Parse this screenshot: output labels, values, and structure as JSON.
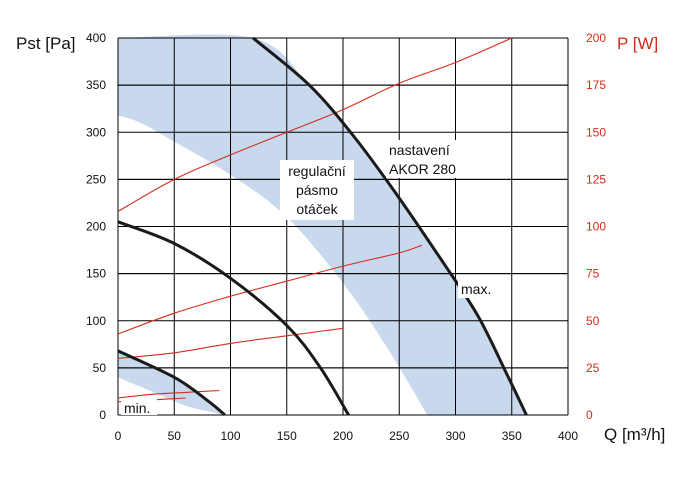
{
  "chart_data": {
    "type": "line",
    "left_axis": {
      "label": "Pst [Pa]",
      "range": [
        0,
        400
      ],
      "ticks": [
        "0",
        "50",
        "100",
        "150",
        "200",
        "250",
        "300",
        "350",
        "400"
      ]
    },
    "right_axis": {
      "label": "P [W]",
      "range": [
        0,
        200
      ],
      "ticks": [
        "0",
        "25",
        "50",
        "75",
        "100",
        "125",
        "150",
        "175",
        "200"
      ],
      "color": "#d42d1b"
    },
    "x_axis": {
      "label": "Q [m³/h]",
      "range": [
        0,
        400
      ],
      "ticks": [
        "0",
        "50",
        "100",
        "150",
        "200",
        "250",
        "300",
        "350",
        "400"
      ]
    },
    "grid": true,
    "colors": {
      "pressure": "#1a1a1a",
      "power": "#d42d1b",
      "band": "#c8d9ee"
    },
    "annotations": {
      "band": [
        "regulační",
        "pásmo",
        "otáček"
      ],
      "setting": [
        "nastavení",
        "AKOR 280"
      ],
      "max": "max.",
      "min": "min."
    },
    "pressure_series": [
      {
        "points": [
          [
            0,
            205
          ],
          [
            50,
            182
          ],
          [
            100,
            145
          ],
          [
            150,
            95
          ],
          [
            180,
            50
          ],
          [
            205,
            0
          ]
        ]
      },
      {
        "points": [
          [
            0,
            68
          ],
          [
            50,
            40
          ],
          [
            80,
            15
          ],
          [
            95,
            0
          ]
        ]
      },
      {
        "points": [
          [
            120,
            400
          ],
          [
            170,
            350
          ],
          [
            210,
            295
          ],
          [
            250,
            230
          ],
          [
            290,
            160
          ],
          [
            320,
            105
          ],
          [
            345,
            45
          ],
          [
            363,
            0
          ]
        ]
      }
    ],
    "power_series": [
      {
        "points": [
          [
            0,
            108
          ],
          [
            50,
            125
          ],
          [
            100,
            138
          ],
          [
            150,
            150
          ],
          [
            200,
            162
          ],
          [
            250,
            176
          ],
          [
            300,
            187
          ],
          [
            350,
            200
          ]
        ]
      },
      {
        "points": [
          [
            0,
            43
          ],
          [
            50,
            54
          ],
          [
            100,
            63
          ],
          [
            150,
            71
          ],
          [
            200,
            79
          ],
          [
            250,
            86
          ],
          [
            270,
            90
          ]
        ]
      },
      {
        "points": [
          [
            0,
            30
          ],
          [
            50,
            33
          ],
          [
            100,
            38
          ],
          [
            150,
            42
          ],
          [
            200,
            46
          ]
        ]
      },
      {
        "points": [
          [
            0,
            9
          ],
          [
            30,
            11
          ],
          [
            60,
            12
          ],
          [
            90,
            13
          ]
        ]
      },
      {
        "points": [
          [
            0,
            7
          ],
          [
            30,
            8
          ],
          [
            60,
            9
          ]
        ]
      }
    ],
    "band_region": {
      "upper": [
        [
          0,
          400
        ],
        [
          120,
          400
        ],
        [
          170,
          350
        ],
        [
          210,
          295
        ],
        [
          250,
          230
        ],
        [
          290,
          160
        ],
        [
          320,
          105
        ],
        [
          345,
          45
        ],
        [
          363,
          0
        ]
      ],
      "lower_inner": [
        [
          275,
          0
        ],
        [
          240,
          70
        ],
        [
          200,
          140
        ],
        [
          150,
          210
        ],
        [
          100,
          255
        ],
        [
          50,
          290
        ],
        [
          20,
          310
        ],
        [
          0,
          318
        ]
      ],
      "small_lower": [
        [
          0,
          40
        ],
        [
          30,
          25
        ],
        [
          60,
          10
        ],
        [
          95,
          0
        ]
      ]
    }
  }
}
